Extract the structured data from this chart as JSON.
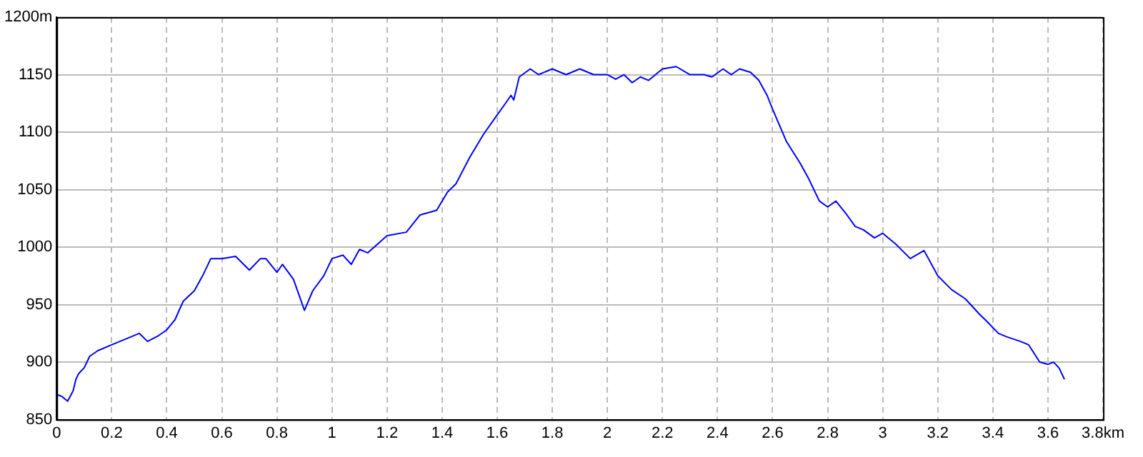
{
  "chart_data": {
    "type": "line",
    "x": [
      0,
      0.02,
      0.04,
      0.06,
      0.07,
      0.08,
      0.1,
      0.12,
      0.15,
      0.2,
      0.25,
      0.3,
      0.33,
      0.37,
      0.4,
      0.43,
      0.46,
      0.5,
      0.53,
      0.56,
      0.6,
      0.65,
      0.7,
      0.74,
      0.76,
      0.8,
      0.82,
      0.86,
      0.9,
      0.93,
      0.97,
      1.0,
      1.04,
      1.07,
      1.1,
      1.13,
      1.2,
      1.27,
      1.32,
      1.38,
      1.42,
      1.45,
      1.5,
      1.55,
      1.6,
      1.63,
      1.65,
      1.66,
      1.68,
      1.72,
      1.75,
      1.8,
      1.85,
      1.9,
      1.95,
      2.0,
      2.03,
      2.06,
      2.09,
      2.12,
      2.15,
      2.2,
      2.25,
      2.3,
      2.35,
      2.38,
      2.42,
      2.45,
      2.48,
      2.52,
      2.55,
      2.58,
      2.6,
      2.65,
      2.7,
      2.73,
      2.77,
      2.8,
      2.83,
      2.87,
      2.9,
      2.93,
      2.97,
      3.0,
      3.05,
      3.1,
      3.15,
      3.2,
      3.25,
      3.3,
      3.35,
      3.38,
      3.42,
      3.45,
      3.5,
      3.53,
      3.57,
      3.6,
      3.62,
      3.64,
      3.66
    ],
    "series": [
      {
        "color": "#0000ff",
        "values": [
          872,
          870,
          866,
          875,
          885,
          890,
          895,
          905,
          910,
          915,
          920,
          925,
          918,
          923,
          928,
          937,
          953,
          962,
          975,
          990,
          990,
          992,
          980,
          990,
          990,
          978,
          985,
          972,
          945,
          962,
          975,
          990,
          993,
          985,
          998,
          995,
          1010,
          1013,
          1028,
          1032,
          1048,
          1055,
          1078,
          1098,
          1115,
          1125,
          1132,
          1128,
          1148,
          1155,
          1150,
          1155,
          1150,
          1155,
          1150,
          1150,
          1146,
          1150,
          1143,
          1148,
          1145,
          1155,
          1157,
          1150,
          1150,
          1148,
          1155,
          1150,
          1155,
          1152,
          1145,
          1132,
          1120,
          1092,
          1073,
          1060,
          1040,
          1035,
          1040,
          1028,
          1018,
          1015,
          1008,
          1012,
          1002,
          990,
          997,
          975,
          963,
          955,
          942,
          935,
          925,
          922,
          918,
          915,
          900,
          898,
          900,
          895,
          885
        ]
      }
    ],
    "xlim": [
      0,
      3.8
    ],
    "xticks": [
      0,
      0.2,
      0.4,
      0.6,
      0.8,
      1,
      1.2,
      1.4,
      1.6,
      1.8,
      2,
      2.2,
      2.4,
      2.6,
      2.8,
      3,
      3.2,
      3.4,
      3.6,
      {
        "value": 3.8,
        "label": "3.8km"
      }
    ],
    "ylim": [
      850,
      1200
    ],
    "yticks": [
      850,
      900,
      950,
      1000,
      1050,
      1100,
      1150,
      {
        "value": 1200,
        "label": "1200m"
      }
    ],
    "grid": true,
    "marker": "none",
    "line_style": "solid",
    "legend": false
  }
}
